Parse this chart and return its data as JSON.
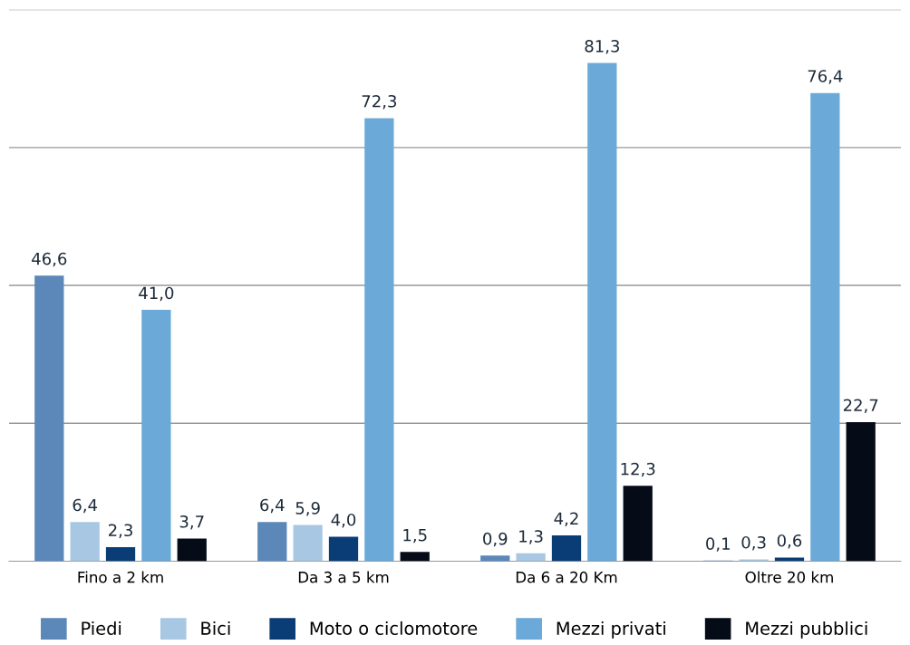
{
  "chart_data": {
    "type": "bar",
    "categories": [
      "Fino a 2 km",
      "Da 3 a 5 km",
      "Da 6 a 20 Km",
      "Oltre 20 km"
    ],
    "series": [
      {
        "name": "Piedi",
        "color": "#5b87b9",
        "values": [
          46.6,
          6.4,
          0.9,
          0.1
        ],
        "value_labels": [
          "46,6",
          "6,4",
          "0,9",
          "0,1"
        ]
      },
      {
        "name": "Bici",
        "color": "#a7c7e3",
        "values": [
          6.4,
          5.9,
          1.3,
          0.3
        ],
        "value_labels": [
          "6,4",
          "5,9",
          "1,3",
          "0,3"
        ]
      },
      {
        "name": "Moto o ciclomotore",
        "color": "#0a3d75",
        "values": [
          2.3,
          4.0,
          4.2,
          0.6
        ],
        "value_labels": [
          "2,3",
          "4,0",
          "4,2",
          "0,6"
        ]
      },
      {
        "name": "Mezzi privati",
        "color": "#6aa9d8",
        "values": [
          41.0,
          72.3,
          81.3,
          76.4
        ],
        "value_labels": [
          "41,0",
          "72,3",
          "81,3",
          "76,4"
        ]
      },
      {
        "name": "Mezzi pubblici",
        "color": "#050b17",
        "values": [
          3.7,
          1.5,
          12.3,
          22.7
        ],
        "value_labels": [
          "3,7",
          "1,5",
          "12,3",
          "22,7"
        ]
      }
    ],
    "ylim": [
      0,
      90
    ],
    "yticks": [
      {
        "value": 22.5,
        "label": null
      },
      {
        "value": 45,
        "label": null
      },
      {
        "value": 67.5,
        "label": null
      },
      {
        "value": 90,
        "label": null
      }
    ],
    "tick_labels": "x",
    "grid": "y",
    "legend": "bottom"
  }
}
